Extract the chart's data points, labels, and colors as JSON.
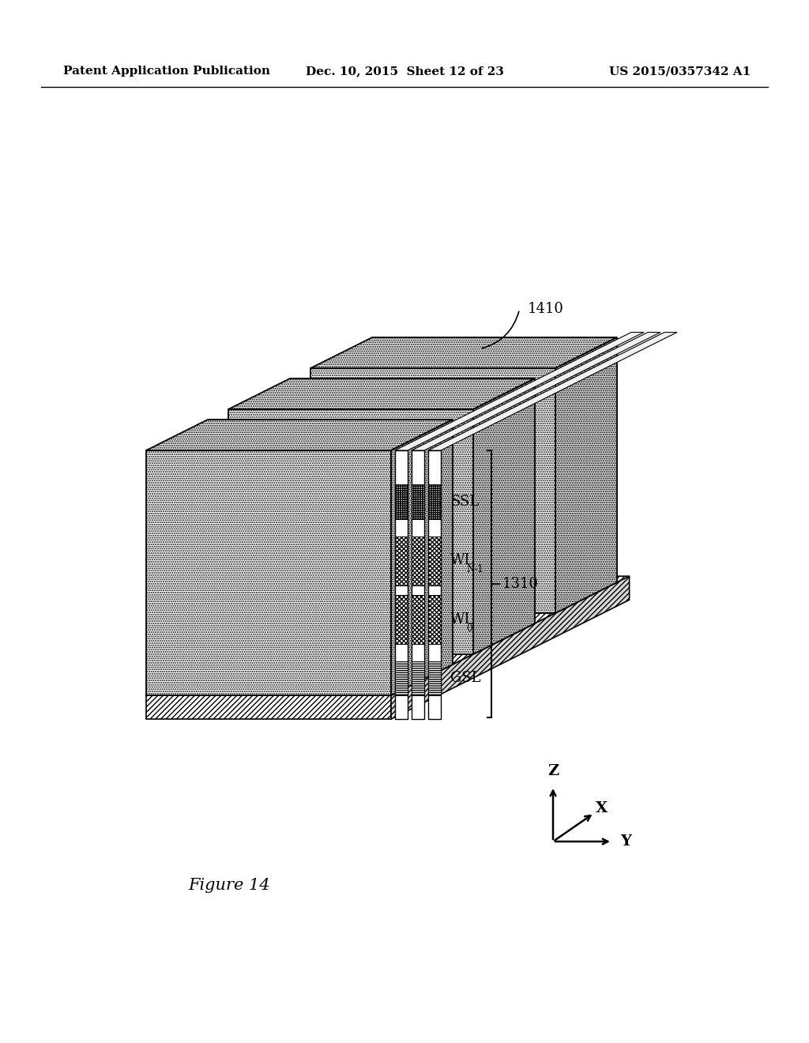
{
  "patent_header_left": "Patent Application Publication",
  "patent_header_mid": "Dec. 10, 2015  Sheet 12 of 23",
  "patent_header_right": "US 2015/0357342 A1",
  "figure_label": "Figure 14",
  "label_1410": "1410",
  "label_1310": "1310",
  "label_ssl": "SSL",
  "label_wl_n1": "WL",
  "label_wl_n1_sub": "N-1",
  "label_wl_0": "WL",
  "label_wl_0_sub": "0",
  "label_gsl": "GSL",
  "axis_z": "Z",
  "axis_x": "X",
  "axis_y": "Y",
  "bg_color": "#ffffff",
  "line_color": "#000000"
}
